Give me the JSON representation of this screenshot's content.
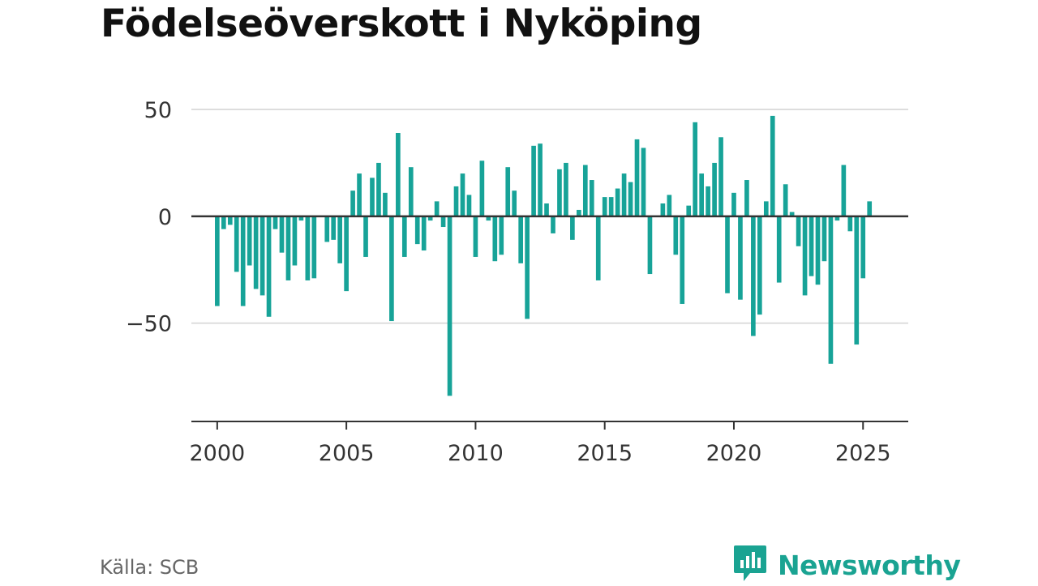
{
  "title": "Födelseöverskott i Nyköping",
  "source": "Källa: SCB",
  "brand": {
    "name": "Newsworthy",
    "icon": "newsworthy-logo-icon"
  },
  "colors": {
    "bar": "#17a398",
    "zero_line": "#333333",
    "grid": "#dddddd",
    "axis": "#333333"
  },
  "chart_data": {
    "type": "bar",
    "title": "Födelseöverskott i Nyköping",
    "xlabel": "",
    "ylabel": "",
    "xlim": [
      1999.0,
      2026.75
    ],
    "ylim": [
      -96,
      50
    ],
    "x_ticks": [
      "2000",
      "2005",
      "2010",
      "2015",
      "2020",
      "2025"
    ],
    "y_ticks": [
      "50",
      "0",
      "−50"
    ],
    "grid": true,
    "x": [
      "2000-Q1",
      "2000-Q2",
      "2000-Q3",
      "2000-Q4",
      "2001-Q1",
      "2001-Q2",
      "2001-Q3",
      "2001-Q4",
      "2002-Q1",
      "2002-Q2",
      "2002-Q3",
      "2002-Q4",
      "2003-Q1",
      "2003-Q2",
      "2003-Q3",
      "2003-Q4",
      "2004-Q1",
      "2004-Q2",
      "2004-Q3",
      "2004-Q4",
      "2005-Q1",
      "2005-Q2",
      "2005-Q3",
      "2005-Q4",
      "2006-Q1",
      "2006-Q2",
      "2006-Q3",
      "2006-Q4",
      "2007-Q1",
      "2007-Q2",
      "2007-Q3",
      "2007-Q4",
      "2008-Q1",
      "2008-Q2",
      "2008-Q3",
      "2008-Q4",
      "2009-Q1",
      "2009-Q2",
      "2009-Q3",
      "2009-Q4",
      "2010-Q1",
      "2010-Q2",
      "2010-Q3",
      "2010-Q4",
      "2011-Q1",
      "2011-Q2",
      "2011-Q3",
      "2011-Q4",
      "2012-Q1",
      "2012-Q2",
      "2012-Q3",
      "2012-Q4",
      "2013-Q1",
      "2013-Q2",
      "2013-Q3",
      "2013-Q4",
      "2014-Q1",
      "2014-Q2",
      "2014-Q3",
      "2014-Q4",
      "2015-Q1",
      "2015-Q2",
      "2015-Q3",
      "2015-Q4",
      "2016-Q1",
      "2016-Q2",
      "2016-Q3",
      "2016-Q4",
      "2017-Q1",
      "2017-Q2",
      "2017-Q3",
      "2017-Q4",
      "2018-Q1",
      "2018-Q2",
      "2018-Q3",
      "2018-Q4",
      "2019-Q1",
      "2019-Q2",
      "2019-Q3",
      "2019-Q4",
      "2020-Q1",
      "2020-Q2",
      "2020-Q3",
      "2020-Q4",
      "2021-Q1",
      "2021-Q2",
      "2021-Q3",
      "2021-Q4",
      "2022-Q1",
      "2022-Q2",
      "2022-Q3",
      "2022-Q4",
      "2023-Q1",
      "2023-Q2",
      "2023-Q3",
      "2023-Q4",
      "2024-Q1",
      "2024-Q2",
      "2024-Q3",
      "2024-Q4",
      "2025-Q1",
      "2025-Q2"
    ],
    "values": [
      -42,
      -6,
      -4,
      -26,
      -42,
      -23,
      -34,
      -37,
      -47,
      -6,
      -17,
      -30,
      -23,
      -2,
      -30,
      -29,
      0,
      -12,
      -11,
      -22,
      -35,
      12,
      20,
      -19,
      18,
      25,
      11,
      -49,
      39,
      -19,
      23,
      -13,
      -16,
      -2,
      7,
      -5,
      -84,
      14,
      20,
      10,
      -19,
      26,
      -2,
      -21,
      -18,
      23,
      12,
      -22,
      -48,
      33,
      34,
      6,
      -8,
      22,
      25,
      -11,
      3,
      24,
      17,
      -30,
      9,
      9,
      13,
      20,
      16,
      36,
      32,
      -27,
      0,
      6,
      10,
      -18,
      -41,
      5,
      44,
      20,
      14,
      25,
      37,
      -36,
      11,
      -39,
      17,
      -56,
      -46,
      7,
      47,
      -31,
      15,
      2,
      -14,
      -37,
      -28,
      -32,
      -21,
      -69,
      -2,
      24,
      -7,
      -60,
      -29,
      7
    ]
  }
}
